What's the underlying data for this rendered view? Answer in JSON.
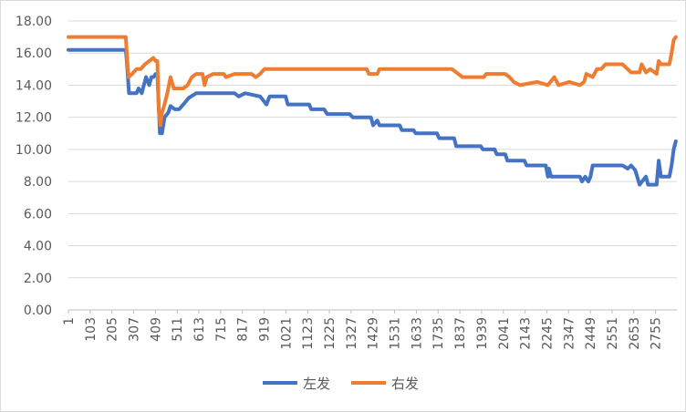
{
  "chart_data": {
    "type": "line",
    "title": "",
    "xlabel": "",
    "ylabel": "",
    "ylim": [
      0,
      18
    ],
    "y_ticks": [
      "0.00",
      "2.00",
      "4.00",
      "6.00",
      "8.00",
      "10.00",
      "12.00",
      "14.00",
      "16.00",
      "18.00"
    ],
    "x_ticks": [
      "1",
      "103",
      "205",
      "307",
      "409",
      "511",
      "613",
      "715",
      "817",
      "919",
      "1021",
      "1123",
      "1225",
      "1327",
      "1429",
      "1531",
      "1633",
      "1735",
      "1837",
      "1939",
      "2041",
      "2143",
      "2245",
      "2347",
      "2449",
      "2551",
      "2653",
      "2755"
    ],
    "xlim": [
      1,
      2855
    ],
    "grid": "horizontal",
    "legend_position": "bottom",
    "series": [
      {
        "name": "左发",
        "color": "#4472C4",
        "points": [
          [
            1,
            16.2
          ],
          [
            270,
            16.2
          ],
          [
            275,
            15.5
          ],
          [
            285,
            13.5
          ],
          [
            320,
            13.5
          ],
          [
            330,
            13.8
          ],
          [
            345,
            13.5
          ],
          [
            355,
            14.0
          ],
          [
            365,
            14.5
          ],
          [
            380,
            14.0
          ],
          [
            390,
            14.5
          ],
          [
            400,
            14.5
          ],
          [
            410,
            14.7
          ],
          [
            418,
            14.7
          ],
          [
            430,
            11.0
          ],
          [
            440,
            11.0
          ],
          [
            452,
            12.0
          ],
          [
            470,
            12.3
          ],
          [
            480,
            12.7
          ],
          [
            500,
            12.5
          ],
          [
            520,
            12.5
          ],
          [
            540,
            12.8
          ],
          [
            565,
            13.2
          ],
          [
            600,
            13.5
          ],
          [
            640,
            13.5
          ],
          [
            700,
            13.5
          ],
          [
            780,
            13.5
          ],
          [
            800,
            13.3
          ],
          [
            830,
            13.5
          ],
          [
            900,
            13.3
          ],
          [
            930,
            12.8
          ],
          [
            945,
            13.3
          ],
          [
            1020,
            13.3
          ],
          [
            1030,
            12.8
          ],
          [
            1130,
            12.8
          ],
          [
            1140,
            12.5
          ],
          [
            1200,
            12.5
          ],
          [
            1215,
            12.2
          ],
          [
            1320,
            12.2
          ],
          [
            1335,
            12.0
          ],
          [
            1420,
            12.0
          ],
          [
            1430,
            11.5
          ],
          [
            1450,
            11.8
          ],
          [
            1460,
            11.5
          ],
          [
            1555,
            11.5
          ],
          [
            1565,
            11.2
          ],
          [
            1620,
            11.2
          ],
          [
            1630,
            11.0
          ],
          [
            1730,
            11.0
          ],
          [
            1740,
            10.7
          ],
          [
            1810,
            10.7
          ],
          [
            1820,
            10.2
          ],
          [
            1935,
            10.2
          ],
          [
            1945,
            10.0
          ],
          [
            2000,
            10.0
          ],
          [
            2010,
            9.7
          ],
          [
            2050,
            9.7
          ],
          [
            2060,
            9.3
          ],
          [
            2140,
            9.3
          ],
          [
            2150,
            9.0
          ],
          [
            2240,
            9.0
          ],
          [
            2250,
            8.3
          ],
          [
            2255,
            8.8
          ],
          [
            2265,
            8.3
          ],
          [
            2400,
            8.3
          ],
          [
            2410,
            8.0
          ],
          [
            2425,
            8.3
          ],
          [
            2440,
            8.0
          ],
          [
            2450,
            8.3
          ],
          [
            2460,
            9.0
          ],
          [
            2600,
            9.0
          ],
          [
            2625,
            8.8
          ],
          [
            2640,
            9.0
          ],
          [
            2660,
            8.7
          ],
          [
            2680,
            7.8
          ],
          [
            2710,
            8.3
          ],
          [
            2720,
            7.8
          ],
          [
            2760,
            7.8
          ],
          [
            2770,
            9.3
          ],
          [
            2780,
            8.3
          ],
          [
            2820,
            8.3
          ],
          [
            2830,
            9.0
          ],
          [
            2840,
            10.0
          ],
          [
            2850,
            10.5
          ]
        ]
      },
      {
        "name": "右发",
        "color": "#ED7D31",
        "points": [
          [
            1,
            17.0
          ],
          [
            270,
            17.0
          ],
          [
            275,
            16.0
          ],
          [
            283,
            14.5
          ],
          [
            300,
            14.7
          ],
          [
            320,
            15.0
          ],
          [
            340,
            15.0
          ],
          [
            360,
            15.3
          ],
          [
            380,
            15.5
          ],
          [
            400,
            15.7
          ],
          [
            410,
            15.5
          ],
          [
            418,
            15.5
          ],
          [
            425,
            12.3
          ],
          [
            433,
            11.5
          ],
          [
            440,
            12.3
          ],
          [
            450,
            12.7
          ],
          [
            465,
            13.5
          ],
          [
            480,
            14.5
          ],
          [
            495,
            13.8
          ],
          [
            540,
            13.8
          ],
          [
            560,
            14.0
          ],
          [
            580,
            14.5
          ],
          [
            600,
            14.7
          ],
          [
            630,
            14.7
          ],
          [
            640,
            14.0
          ],
          [
            650,
            14.5
          ],
          [
            680,
            14.7
          ],
          [
            730,
            14.7
          ],
          [
            740,
            14.5
          ],
          [
            780,
            14.7
          ],
          [
            860,
            14.7
          ],
          [
            880,
            14.5
          ],
          [
            900,
            14.7
          ],
          [
            920,
            15.0
          ],
          [
            1000,
            15.0
          ],
          [
            1400,
            15.0
          ],
          [
            1410,
            14.7
          ],
          [
            1450,
            14.7
          ],
          [
            1460,
            15.0
          ],
          [
            1800,
            15.0
          ],
          [
            1850,
            14.5
          ],
          [
            1950,
            14.5
          ],
          [
            1960,
            14.7
          ],
          [
            2050,
            14.7
          ],
          [
            2070,
            14.5
          ],
          [
            2090,
            14.2
          ],
          [
            2120,
            14.0
          ],
          [
            2200,
            14.2
          ],
          [
            2250,
            14.0
          ],
          [
            2280,
            14.5
          ],
          [
            2300,
            14.0
          ],
          [
            2350,
            14.2
          ],
          [
            2400,
            14.0
          ],
          [
            2420,
            14.2
          ],
          [
            2430,
            14.7
          ],
          [
            2460,
            14.5
          ],
          [
            2480,
            15.0
          ],
          [
            2500,
            15.0
          ],
          [
            2520,
            15.3
          ],
          [
            2600,
            15.3
          ],
          [
            2640,
            14.8
          ],
          [
            2680,
            14.8
          ],
          [
            2690,
            15.3
          ],
          [
            2710,
            14.8
          ],
          [
            2730,
            15.0
          ],
          [
            2760,
            14.7
          ],
          [
            2770,
            15.5
          ],
          [
            2780,
            15.3
          ],
          [
            2820,
            15.3
          ],
          [
            2830,
            16.0
          ],
          [
            2840,
            16.8
          ],
          [
            2850,
            17.0
          ]
        ]
      }
    ]
  }
}
